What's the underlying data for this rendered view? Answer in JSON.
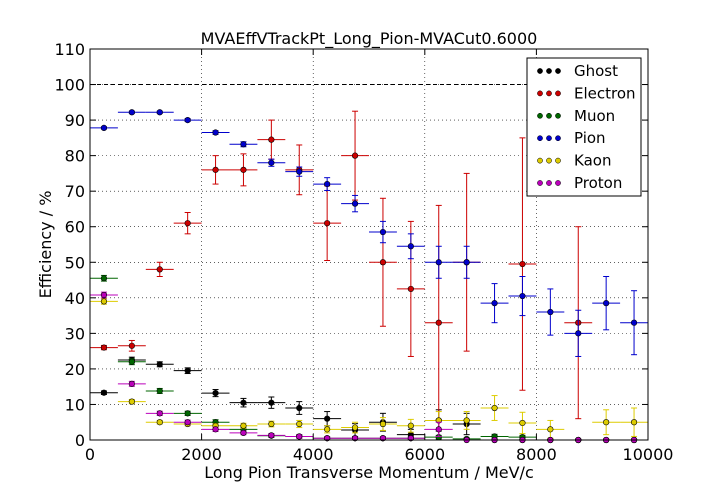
{
  "chart_data": {
    "type": "scatter",
    "title": "MVAEffVTrackPt_Long_Pion-MVACut0.6000",
    "xlabel": "Long Pion Transverse Momentum / MeV/c",
    "ylabel": "Efficiency / %",
    "xlim": [
      0,
      10000
    ],
    "ylim": [
      0,
      110
    ],
    "xticks": [
      "0",
      "2000",
      "4000",
      "6000",
      "8000",
      "10000"
    ],
    "yticks": [
      "0",
      "10",
      "20",
      "30",
      "40",
      "50",
      "60",
      "70",
      "80",
      "90",
      "100",
      "110"
    ],
    "grid": true,
    "reference_line_y": 100,
    "legend_position": "top-right",
    "series": [
      {
        "name": "Ghost",
        "color": "#000000",
        "points": [
          {
            "x": 250,
            "y": 13.3,
            "xerr": 250,
            "yerr": 0.5
          },
          {
            "x": 750,
            "y": 22.5,
            "xerr": 250,
            "yerr": 0.8
          },
          {
            "x": 1250,
            "y": 21.3,
            "xerr": 250,
            "yerr": 0.7
          },
          {
            "x": 1750,
            "y": 19.5,
            "xerr": 250,
            "yerr": 0.8
          },
          {
            "x": 2250,
            "y": 13.2,
            "xerr": 250,
            "yerr": 1.0
          },
          {
            "x": 2750,
            "y": 10.5,
            "xerr": 250,
            "yerr": 1.2
          },
          {
            "x": 3250,
            "y": 10.5,
            "xerr": 250,
            "yerr": 1.6
          },
          {
            "x": 3750,
            "y": 9.0,
            "xerr": 250,
            "yerr": 1.8
          },
          {
            "x": 4250,
            "y": 6.0,
            "xerr": 250,
            "yerr": 2.0
          },
          {
            "x": 4750,
            "y": 2.8,
            "xerr": 250,
            "yerr": 1.8
          },
          {
            "x": 5250,
            "y": 5.0,
            "xerr": 250,
            "yerr": 2.5
          },
          {
            "x": 5750,
            "y": 1.5,
            "xerr": 250,
            "yerr": 1.5
          },
          {
            "x": 6250,
            "y": 5.5,
            "xerr": 250,
            "yerr": 3.0
          },
          {
            "x": 6750,
            "y": 4.5,
            "xerr": 250,
            "yerr": 3.0
          },
          {
            "x": 7250,
            "y": 0,
            "xerr": 250,
            "yerr": 0
          },
          {
            "x": 7750,
            "y": 0,
            "xerr": 250,
            "yerr": 0
          },
          {
            "x": 8250,
            "y": 0,
            "xerr": 250,
            "yerr": 0
          },
          {
            "x": 8750,
            "y": 0,
            "xerr": 250,
            "yerr": 0
          },
          {
            "x": 9250,
            "y": 0,
            "xerr": 250,
            "yerr": 0
          },
          {
            "x": 9750,
            "y": 0,
            "xerr": 250,
            "yerr": 0
          }
        ]
      },
      {
        "name": "Electron",
        "color": "#cc0000",
        "points": [
          {
            "x": 250,
            "y": 26.0,
            "xerr": 250,
            "yerr": 0.6
          },
          {
            "x": 750,
            "y": 26.5,
            "xerr": 250,
            "yerr": 1.5
          },
          {
            "x": 1250,
            "y": 48.0,
            "xerr": 250,
            "yerr": 2.0
          },
          {
            "x": 1750,
            "y": 61.0,
            "xerr": 250,
            "yerr": 3.0
          },
          {
            "x": 2250,
            "y": 76.0,
            "xerr": 250,
            "yerr": 4.0
          },
          {
            "x": 2750,
            "y": 76.0,
            "xerr": 250,
            "yerr": 4.5
          },
          {
            "x": 3250,
            "y": 84.5,
            "xerr": 250,
            "yerr": 5.5
          },
          {
            "x": 3750,
            "y": 76.0,
            "xerr": 250,
            "yerr": 7.0
          },
          {
            "x": 4250,
            "y": 61.0,
            "xerr": 250,
            "yerr": 10.5
          },
          {
            "x": 4750,
            "y": 80.0,
            "xerr": 250,
            "yerr": 12.5
          },
          {
            "x": 5250,
            "y": 50.0,
            "xerr": 250,
            "yerr": 18.0
          },
          {
            "x": 5750,
            "y": 42.5,
            "xerr": 250,
            "yerr": 19.0
          },
          {
            "x": 6250,
            "y": 33.0,
            "xerr": 250,
            "yerr": 33.0
          },
          {
            "x": 6750,
            "y": 50.0,
            "xerr": 250,
            "yerr": 25.0
          },
          {
            "x": 7750,
            "y": 49.5,
            "xerr": 250,
            "yerr": 35.5
          },
          {
            "x": 8750,
            "y": 33.0,
            "xerr": 250,
            "yerr": 27.0
          }
        ]
      },
      {
        "name": "Muon",
        "color": "#006600",
        "points": [
          {
            "x": 250,
            "y": 45.5,
            "xerr": 250,
            "yerr": 0.8
          },
          {
            "x": 750,
            "y": 22.0,
            "xerr": 250,
            "yerr": 0.8
          },
          {
            "x": 1250,
            "y": 13.8,
            "xerr": 250,
            "yerr": 0.7
          },
          {
            "x": 1750,
            "y": 7.5,
            "xerr": 250,
            "yerr": 0.6
          },
          {
            "x": 2250,
            "y": 5.0,
            "xerr": 250,
            "yerr": 0.7
          },
          {
            "x": 2750,
            "y": 3.0,
            "xerr": 250,
            "yerr": 0.6
          },
          {
            "x": 3250,
            "y": 1.2,
            "xerr": 250,
            "yerr": 0.5
          },
          {
            "x": 3750,
            "y": 1.0,
            "xerr": 250,
            "yerr": 0.5
          },
          {
            "x": 4250,
            "y": 0.5,
            "xerr": 250,
            "yerr": 0.4
          },
          {
            "x": 4750,
            "y": 0.5,
            "xerr": 250,
            "yerr": 0.4
          },
          {
            "x": 5250,
            "y": 0.5,
            "xerr": 250,
            "yerr": 0.4
          },
          {
            "x": 5750,
            "y": 0.5,
            "xerr": 250,
            "yerr": 0.4
          },
          {
            "x": 6250,
            "y": 0.8,
            "xerr": 250,
            "yerr": 0.5
          },
          {
            "x": 6750,
            "y": 0.3,
            "xerr": 250,
            "yerr": 0.3
          },
          {
            "x": 7250,
            "y": 1.0,
            "xerr": 250,
            "yerr": 0.6
          },
          {
            "x": 7750,
            "y": 0.8,
            "xerr": 250,
            "yerr": 0.5
          },
          {
            "x": 8250,
            "y": 0,
            "xerr": 250,
            "yerr": 0
          },
          {
            "x": 8750,
            "y": 0,
            "xerr": 250,
            "yerr": 0
          },
          {
            "x": 9250,
            "y": 0,
            "xerr": 250,
            "yerr": 0
          },
          {
            "x": 9750,
            "y": 0,
            "xerr": 250,
            "yerr": 0
          }
        ]
      },
      {
        "name": "Pion",
        "color": "#0000cc",
        "points": [
          {
            "x": 250,
            "y": 87.8,
            "xerr": 250,
            "yerr": 0.3
          },
          {
            "x": 750,
            "y": 92.2,
            "xerr": 250,
            "yerr": 0.3
          },
          {
            "x": 1250,
            "y": 92.2,
            "xerr": 250,
            "yerr": 0.3
          },
          {
            "x": 1750,
            "y": 90.0,
            "xerr": 250,
            "yerr": 0.4
          },
          {
            "x": 2250,
            "y": 86.5,
            "xerr": 250,
            "yerr": 0.5
          },
          {
            "x": 2750,
            "y": 83.2,
            "xerr": 250,
            "yerr": 0.7
          },
          {
            "x": 3250,
            "y": 78.0,
            "xerr": 250,
            "yerr": 1.0
          },
          {
            "x": 3750,
            "y": 75.5,
            "xerr": 250,
            "yerr": 1.3
          },
          {
            "x": 4250,
            "y": 72.0,
            "xerr": 250,
            "yerr": 1.8
          },
          {
            "x": 4750,
            "y": 66.5,
            "xerr": 250,
            "yerr": 2.3
          },
          {
            "x": 5250,
            "y": 58.5,
            "xerr": 250,
            "yerr": 3.0
          },
          {
            "x": 5750,
            "y": 54.5,
            "xerr": 250,
            "yerr": 3.5
          },
          {
            "x": 6250,
            "y": 50.0,
            "xerr": 250,
            "yerr": 4.5
          },
          {
            "x": 6750,
            "y": 50.0,
            "xerr": 250,
            "yerr": 4.5
          },
          {
            "x": 7250,
            "y": 38.5,
            "xerr": 250,
            "yerr": 5.5
          },
          {
            "x": 7750,
            "y": 40.5,
            "xerr": 250,
            "yerr": 5.5
          },
          {
            "x": 8250,
            "y": 36.0,
            "xerr": 250,
            "yerr": 6.5
          },
          {
            "x": 8750,
            "y": 30.0,
            "xerr": 250,
            "yerr": 6.5
          },
          {
            "x": 9250,
            "y": 38.5,
            "xerr": 250,
            "yerr": 7.5
          },
          {
            "x": 9750,
            "y": 33.0,
            "xerr": 250,
            "yerr": 9.0
          }
        ]
      },
      {
        "name": "Kaon",
        "color": "#ddcc00",
        "points": [
          {
            "x": 250,
            "y": 39.0,
            "xerr": 250,
            "yerr": 0.8
          },
          {
            "x": 750,
            "y": 10.8,
            "xerr": 250,
            "yerr": 0.6
          },
          {
            "x": 1250,
            "y": 5.0,
            "xerr": 250,
            "yerr": 0.5
          },
          {
            "x": 1750,
            "y": 4.5,
            "xerr": 250,
            "yerr": 0.5
          },
          {
            "x": 2250,
            "y": 4.0,
            "xerr": 250,
            "yerr": 0.6
          },
          {
            "x": 2750,
            "y": 4.0,
            "xerr": 250,
            "yerr": 0.7
          },
          {
            "x": 3250,
            "y": 4.5,
            "xerr": 250,
            "yerr": 0.8
          },
          {
            "x": 3750,
            "y": 4.5,
            "xerr": 250,
            "yerr": 1.0
          },
          {
            "x": 4250,
            "y": 3.0,
            "xerr": 250,
            "yerr": 1.0
          },
          {
            "x": 4750,
            "y": 3.5,
            "xerr": 250,
            "yerr": 1.5
          },
          {
            "x": 5250,
            "y": 4.5,
            "xerr": 250,
            "yerr": 1.8
          },
          {
            "x": 5750,
            "y": 4.0,
            "xerr": 250,
            "yerr": 1.8
          },
          {
            "x": 6250,
            "y": 5.5,
            "xerr": 250,
            "yerr": 2.5
          },
          {
            "x": 6750,
            "y": 5.5,
            "xerr": 250,
            "yerr": 2.5
          },
          {
            "x": 7250,
            "y": 9.0,
            "xerr": 250,
            "yerr": 3.5
          },
          {
            "x": 7750,
            "y": 4.8,
            "xerr": 250,
            "yerr": 3.0
          },
          {
            "x": 8250,
            "y": 3.0,
            "xerr": 250,
            "yerr": 2.5
          },
          {
            "x": 8750,
            "y": 0,
            "xerr": 250,
            "yerr": 0
          },
          {
            "x": 9250,
            "y": 5.0,
            "xerr": 250,
            "yerr": 3.5
          },
          {
            "x": 9750,
            "y": 5.0,
            "xerr": 250,
            "yerr": 4.0
          }
        ]
      },
      {
        "name": "Proton",
        "color": "#bb00bb",
        "points": [
          {
            "x": 250,
            "y": 40.8,
            "xerr": 250,
            "yerr": 0.8
          },
          {
            "x": 750,
            "y": 15.8,
            "xerr": 250,
            "yerr": 0.7
          },
          {
            "x": 1250,
            "y": 7.5,
            "xerr": 250,
            "yerr": 0.6
          },
          {
            "x": 1750,
            "y": 5.0,
            "xerr": 250,
            "yerr": 0.6
          },
          {
            "x": 2250,
            "y": 3.0,
            "xerr": 250,
            "yerr": 0.6
          },
          {
            "x": 2750,
            "y": 2.0,
            "xerr": 250,
            "yerr": 0.5
          },
          {
            "x": 3250,
            "y": 1.3,
            "xerr": 250,
            "yerr": 0.5
          },
          {
            "x": 3750,
            "y": 1.0,
            "xerr": 250,
            "yerr": 0.5
          },
          {
            "x": 4250,
            "y": 0.5,
            "xerr": 250,
            "yerr": 0.4
          },
          {
            "x": 4750,
            "y": 0.5,
            "xerr": 250,
            "yerr": 0.4
          },
          {
            "x": 5250,
            "y": 0.5,
            "xerr": 250,
            "yerr": 0.4
          },
          {
            "x": 5750,
            "y": 0.5,
            "xerr": 250,
            "yerr": 0.4
          },
          {
            "x": 6250,
            "y": 3.0,
            "xerr": 250,
            "yerr": 2.0
          },
          {
            "x": 6750,
            "y": 0,
            "xerr": 250,
            "yerr": 0
          },
          {
            "x": 7250,
            "y": 0,
            "xerr": 250,
            "yerr": 0
          },
          {
            "x": 7750,
            "y": 0,
            "xerr": 250,
            "yerr": 0
          },
          {
            "x": 8250,
            "y": 0,
            "xerr": 250,
            "yerr": 0
          },
          {
            "x": 8750,
            "y": 0,
            "xerr": 250,
            "yerr": 0
          },
          {
            "x": 9250,
            "y": 0,
            "xerr": 250,
            "yerr": 0
          },
          {
            "x": 9750,
            "y": 0,
            "xerr": 250,
            "yerr": 0
          }
        ]
      }
    ]
  }
}
